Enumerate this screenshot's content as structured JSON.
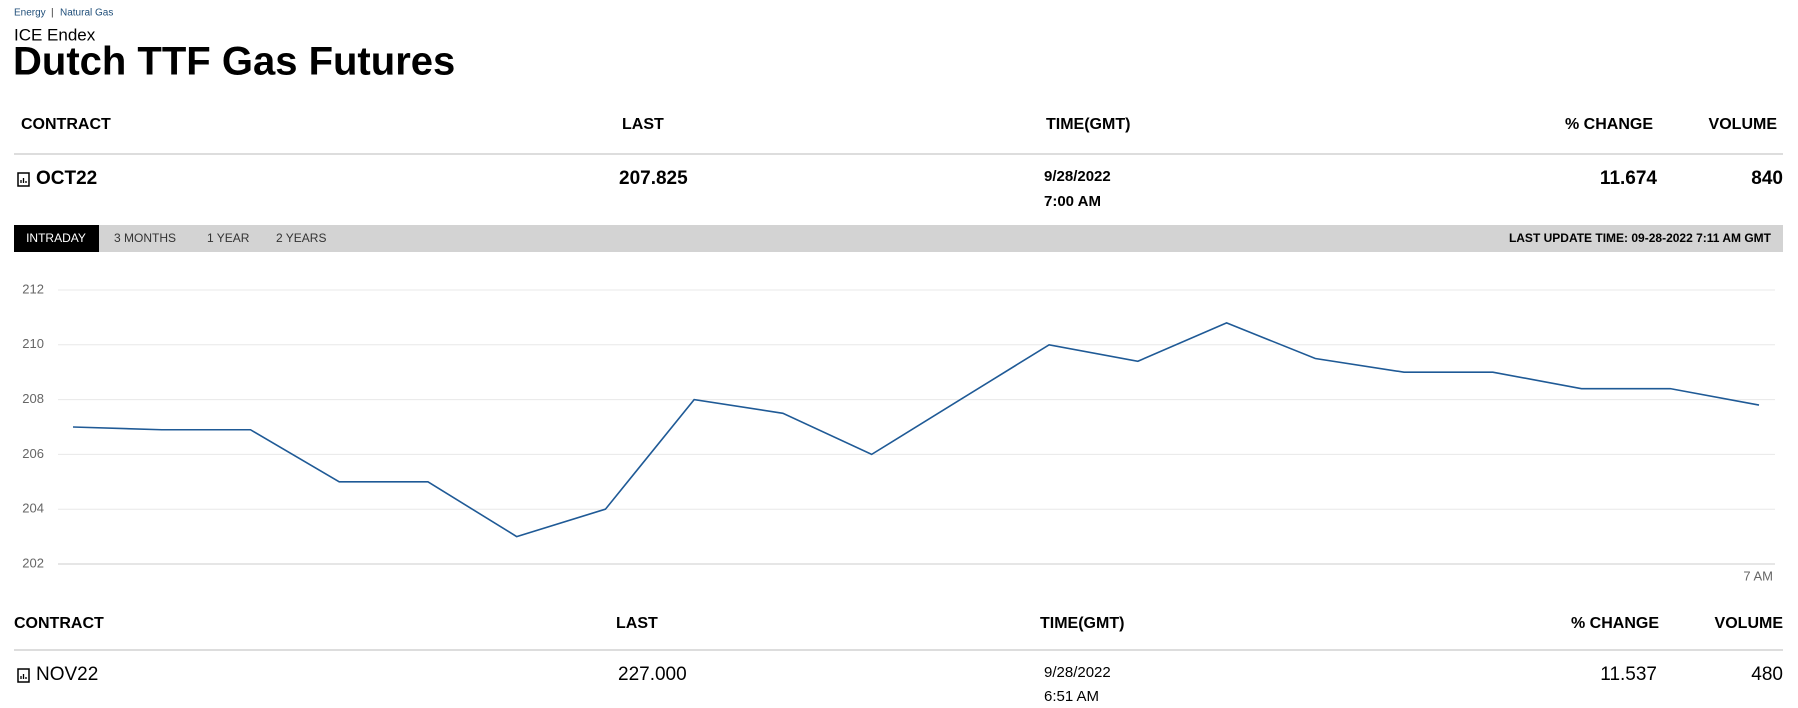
{
  "breadcrumb": {
    "items": [
      "Energy",
      "Natural Gas"
    ],
    "separator": "|"
  },
  "header": {
    "exchange": "ICE Endex",
    "title": "Dutch TTF Gas Futures"
  },
  "tables": [
    {
      "columns": [
        "CONTRACT",
        "LAST",
        "TIME(GMT)",
        "% CHANGE",
        "VOLUME"
      ],
      "row": {
        "contract": "OCT22",
        "last": "207.825",
        "date": "9/28/2022",
        "time": "7:00 AM",
        "change": "11.674",
        "volume": "840"
      }
    },
    {
      "columns": [
        "CONTRACT",
        "LAST",
        "TIME(GMT)",
        "% CHANGE",
        "VOLUME"
      ],
      "row": {
        "contract": "NOV22",
        "last": "227.000",
        "date": "9/28/2022",
        "time": "6:51 AM",
        "change": "11.537",
        "volume": "480"
      }
    }
  ],
  "tabs": [
    "INTRADAY",
    "3 MONTHS",
    "1 YEAR",
    "2 YEARS"
  ],
  "last_update": "LAST UPDATE TIME: 09-28-2022 7:11 AM GMT",
  "chart_data": {
    "type": "line",
    "categories": [
      null,
      null,
      null,
      null,
      null,
      null,
      null,
      null,
      null,
      null,
      null,
      null,
      null,
      null,
      null,
      null,
      null,
      null,
      null,
      "7 AM"
    ],
    "series": [
      {
        "name": "OCT22",
        "color": "#1f5a96",
        "values": [
          207.0,
          206.9,
          206.9,
          205.0,
          205.0,
          203.0,
          204.0,
          208.0,
          207.5,
          206.0,
          208.0,
          210.0,
          209.4,
          210.8,
          209.5,
          209.0,
          209.0,
          208.4,
          208.4,
          207.8
        ]
      }
    ],
    "ylim": [
      202,
      212
    ],
    "yticks": [
      202,
      204,
      206,
      208,
      210,
      212
    ],
    "grid": true
  }
}
